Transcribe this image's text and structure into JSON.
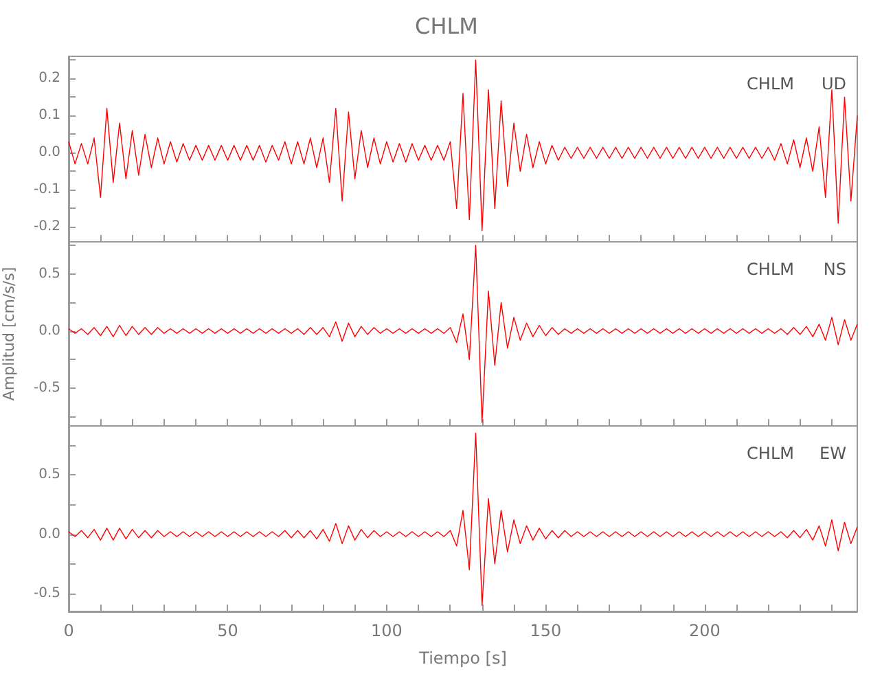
{
  "chart_data": [
    {
      "type": "line",
      "title": "CHLM",
      "annotations": [
        "CHLM",
        "UD"
      ],
      "tick_labels": "y",
      "grid": false,
      "line_style": "solid",
      "x": [
        0,
        2,
        4,
        6,
        8,
        10,
        12,
        14,
        16,
        18,
        20,
        22,
        24,
        26,
        28,
        30,
        32,
        34,
        36,
        38,
        40,
        42,
        44,
        46,
        48,
        50,
        52,
        54,
        56,
        58,
        60,
        62,
        64,
        66,
        68,
        70,
        72,
        74,
        76,
        78,
        80,
        82,
        84,
        86,
        88,
        90,
        92,
        94,
        96,
        98,
        100,
        102,
        104,
        106,
        108,
        110,
        112,
        114,
        116,
        118,
        120,
        122,
        124,
        126,
        128,
        130,
        132,
        134,
        136,
        138,
        140,
        142,
        144,
        146,
        148,
        150,
        152,
        154,
        156,
        158,
        160,
        162,
        164,
        166,
        168,
        170,
        172,
        174,
        176,
        178,
        180,
        182,
        184,
        186,
        188,
        190,
        192,
        194,
        196,
        198,
        200,
        202,
        204,
        206,
        208,
        210,
        212,
        214,
        216,
        218,
        220,
        222,
        224,
        226,
        228,
        230,
        232,
        234,
        236,
        238,
        240,
        242,
        244,
        246,
        248
      ],
      "series": [
        {
          "color": "#ff0000",
          "values": [
            0.03,
            -0.03,
            0.025,
            -0.03,
            0.04,
            -0.12,
            0.12,
            -0.08,
            0.08,
            -0.07,
            0.06,
            -0.06,
            0.05,
            -0.04,
            0.04,
            -0.03,
            0.03,
            -0.025,
            0.025,
            -0.02,
            0.02,
            -0.02,
            0.02,
            -0.02,
            0.02,
            -0.02,
            0.02,
            -0.02,
            0.02,
            -0.02,
            0.02,
            -0.025,
            0.02,
            -0.02,
            0.03,
            -0.03,
            0.03,
            -0.03,
            0.04,
            -0.04,
            0.04,
            -0.08,
            0.12,
            -0.13,
            0.11,
            -0.07,
            0.06,
            -0.04,
            0.04,
            -0.03,
            0.03,
            -0.025,
            0.025,
            -0.025,
            0.025,
            -0.02,
            0.02,
            -0.02,
            0.02,
            -0.02,
            0.03,
            -0.15,
            0.16,
            -0.18,
            0.25,
            -0.21,
            0.17,
            -0.15,
            0.14,
            -0.09,
            0.08,
            -0.05,
            0.05,
            -0.04,
            0.03,
            -0.03,
            0.02,
            -0.02,
            0.015,
            -0.015,
            0.015,
            -0.015,
            0.015,
            -0.015,
            0.015,
            -0.015,
            0.015,
            -0.015,
            0.015,
            -0.015,
            0.015,
            -0.015,
            0.015,
            -0.015,
            0.015,
            -0.015,
            0.015,
            -0.015,
            0.015,
            -0.015,
            0.015,
            -0.015,
            0.015,
            -0.015,
            0.015,
            -0.015,
            0.015,
            -0.015,
            0.015,
            -0.015,
            0.015,
            -0.02,
            0.025,
            -0.03,
            0.035,
            -0.04,
            0.04,
            -0.05,
            0.07,
            -0.12,
            0.17,
            -0.19,
            0.15,
            -0.13,
            0.1
          ]
        }
      ],
      "xlim": [
        0,
        248
      ],
      "xticks": [
        0,
        {
          "value": 10,
          "label": null
        },
        {
          "value": 20,
          "label": null
        },
        {
          "value": 30,
          "label": null
        },
        {
          "value": 40,
          "label": null
        },
        50,
        {
          "value": 60,
          "label": null
        },
        {
          "value": 70,
          "label": null
        },
        {
          "value": 80,
          "label": null
        },
        {
          "value": 90,
          "label": null
        },
        100,
        {
          "value": 110,
          "label": null
        },
        {
          "value": 120,
          "label": null
        },
        {
          "value": 130,
          "label": null
        },
        {
          "value": 140,
          "label": null
        },
        150,
        {
          "value": 160,
          "label": null
        },
        {
          "value": 170,
          "label": null
        },
        {
          "value": 180,
          "label": null
        },
        {
          "value": 190,
          "label": null
        },
        200,
        {
          "value": 210,
          "label": null
        },
        {
          "value": 220,
          "label": null
        },
        {
          "value": 230,
          "label": null
        },
        {
          "value": 240,
          "label": null
        }
      ],
      "ylim": [
        -0.24,
        0.26
      ],
      "yticks": [
        {
          "value": -0.2,
          "label": "-0.2"
        },
        {
          "value": -0.15,
          "label": null
        },
        {
          "value": -0.1,
          "label": "-0.1"
        },
        {
          "value": -0.05,
          "label": null
        },
        {
          "value": 0,
          "label": "0.0"
        },
        {
          "value": 0.05,
          "label": null
        },
        {
          "value": 0.1,
          "label": "0.1"
        },
        {
          "value": 0.15,
          "label": null
        },
        {
          "value": 0.2,
          "label": "0.2"
        },
        {
          "value": 0.25,
          "label": null
        }
      ]
    },
    {
      "type": "line",
      "ylabel": "Amplitud [cm/s/s]",
      "annotations": [
        "CHLM",
        "NS"
      ],
      "tick_labels": "y",
      "grid": false,
      "line_style": "solid",
      "x": [
        0,
        2,
        4,
        6,
        8,
        10,
        12,
        14,
        16,
        18,
        20,
        22,
        24,
        26,
        28,
        30,
        32,
        34,
        36,
        38,
        40,
        42,
        44,
        46,
        48,
        50,
        52,
        54,
        56,
        58,
        60,
        62,
        64,
        66,
        68,
        70,
        72,
        74,
        76,
        78,
        80,
        82,
        84,
        86,
        88,
        90,
        92,
        94,
        96,
        98,
        100,
        102,
        104,
        106,
        108,
        110,
        112,
        114,
        116,
        118,
        120,
        122,
        124,
        126,
        128,
        130,
        132,
        134,
        136,
        138,
        140,
        142,
        144,
        146,
        148,
        150,
        152,
        154,
        156,
        158,
        160,
        162,
        164,
        166,
        168,
        170,
        172,
        174,
        176,
        178,
        180,
        182,
        184,
        186,
        188,
        190,
        192,
        194,
        196,
        198,
        200,
        202,
        204,
        206,
        208,
        210,
        212,
        214,
        216,
        218,
        220,
        222,
        224,
        226,
        228,
        230,
        232,
        234,
        236,
        238,
        240,
        242,
        244,
        246,
        248
      ],
      "series": [
        {
          "color": "#ff0000",
          "values": [
            0.02,
            -0.02,
            0.02,
            -0.03,
            0.03,
            -0.04,
            0.04,
            -0.05,
            0.05,
            -0.04,
            0.04,
            -0.03,
            0.03,
            -0.03,
            0.03,
            -0.02,
            0.02,
            -0.02,
            0.02,
            -0.02,
            0.02,
            -0.02,
            0.02,
            -0.02,
            0.02,
            -0.02,
            0.02,
            -0.02,
            0.02,
            -0.02,
            0.02,
            -0.02,
            0.02,
            -0.02,
            0.02,
            -0.02,
            0.02,
            -0.03,
            0.03,
            -0.03,
            0.03,
            -0.05,
            0.08,
            -0.09,
            0.07,
            -0.05,
            0.04,
            -0.03,
            0.03,
            -0.02,
            0.02,
            -0.02,
            0.02,
            -0.02,
            0.02,
            -0.02,
            0.02,
            -0.02,
            0.02,
            -0.02,
            0.03,
            -0.1,
            0.15,
            -0.25,
            0.75,
            -0.8,
            0.35,
            -0.3,
            0.25,
            -0.15,
            0.12,
            -0.08,
            0.07,
            -0.05,
            0.05,
            -0.04,
            0.03,
            -0.03,
            0.02,
            -0.02,
            0.02,
            -0.02,
            0.02,
            -0.02,
            0.02,
            -0.02,
            0.02,
            -0.02,
            0.02,
            -0.02,
            0.02,
            -0.02,
            0.02,
            -0.02,
            0.02,
            -0.02,
            0.02,
            -0.02,
            0.02,
            -0.02,
            0.02,
            -0.02,
            0.02,
            -0.02,
            0.02,
            -0.02,
            0.02,
            -0.02,
            0.02,
            -0.02,
            0.02,
            -0.02,
            0.02,
            -0.03,
            0.03,
            -0.03,
            0.04,
            -0.05,
            0.06,
            -0.08,
            0.12,
            -0.12,
            0.1,
            -0.08,
            0.06
          ]
        }
      ],
      "xlim": [
        0,
        248
      ],
      "xticks": [
        0,
        {
          "value": 10,
          "label": null
        },
        {
          "value": 20,
          "label": null
        },
        {
          "value": 30,
          "label": null
        },
        {
          "value": 40,
          "label": null
        },
        50,
        {
          "value": 60,
          "label": null
        },
        {
          "value": 70,
          "label": null
        },
        {
          "value": 80,
          "label": null
        },
        {
          "value": 90,
          "label": null
        },
        100,
        {
          "value": 110,
          "label": null
        },
        {
          "value": 120,
          "label": null
        },
        {
          "value": 130,
          "label": null
        },
        {
          "value": 140,
          "label": null
        },
        150,
        {
          "value": 160,
          "label": null
        },
        {
          "value": 170,
          "label": null
        },
        {
          "value": 180,
          "label": null
        },
        {
          "value": 190,
          "label": null
        },
        200,
        {
          "value": 210,
          "label": null
        },
        {
          "value": 220,
          "label": null
        },
        {
          "value": 230,
          "label": null
        },
        {
          "value": 240,
          "label": null
        }
      ],
      "ylim": [
        -0.83,
        0.78
      ],
      "yticks": [
        {
          "value": -0.75,
          "label": null
        },
        {
          "value": -0.5,
          "label": "-0.5"
        },
        {
          "value": -0.25,
          "label": null
        },
        {
          "value": 0,
          "label": "0.0"
        },
        {
          "value": 0.25,
          "label": null
        },
        {
          "value": 0.5,
          "label": "0.5"
        },
        {
          "value": 0.75,
          "label": null
        }
      ]
    },
    {
      "type": "line",
      "xlabel": "Tiempo [s]",
      "annotations": [
        "CHLM",
        "EW"
      ],
      "grid": false,
      "line_style": "solid",
      "x": [
        0,
        2,
        4,
        6,
        8,
        10,
        12,
        14,
        16,
        18,
        20,
        22,
        24,
        26,
        28,
        30,
        32,
        34,
        36,
        38,
        40,
        42,
        44,
        46,
        48,
        50,
        52,
        54,
        56,
        58,
        60,
        62,
        64,
        66,
        68,
        70,
        72,
        74,
        76,
        78,
        80,
        82,
        84,
        86,
        88,
        90,
        92,
        94,
        96,
        98,
        100,
        102,
        104,
        106,
        108,
        110,
        112,
        114,
        116,
        118,
        120,
        122,
        124,
        126,
        128,
        130,
        132,
        134,
        136,
        138,
        140,
        142,
        144,
        146,
        148,
        150,
        152,
        154,
        156,
        158,
        160,
        162,
        164,
        166,
        168,
        170,
        172,
        174,
        176,
        178,
        180,
        182,
        184,
        186,
        188,
        190,
        192,
        194,
        196,
        198,
        200,
        202,
        204,
        206,
        208,
        210,
        212,
        214,
        216,
        218,
        220,
        222,
        224,
        226,
        228,
        230,
        232,
        234,
        236,
        238,
        240,
        242,
        244,
        246,
        248
      ],
      "series": [
        {
          "color": "#ff0000",
          "values": [
            0.02,
            -0.02,
            0.03,
            -0.03,
            0.04,
            -0.05,
            0.05,
            -0.05,
            0.05,
            -0.04,
            0.04,
            -0.03,
            0.03,
            -0.03,
            0.03,
            -0.02,
            0.02,
            -0.02,
            0.02,
            -0.02,
            0.02,
            -0.02,
            0.02,
            -0.02,
            0.02,
            -0.02,
            0.02,
            -0.02,
            0.02,
            -0.02,
            0.02,
            -0.02,
            0.02,
            -0.02,
            0.03,
            -0.03,
            0.03,
            -0.03,
            0.03,
            -0.04,
            0.04,
            -0.06,
            0.09,
            -0.08,
            0.07,
            -0.05,
            0.04,
            -0.03,
            0.03,
            -0.02,
            0.02,
            -0.02,
            0.02,
            -0.02,
            0.02,
            -0.02,
            0.02,
            -0.02,
            0.02,
            -0.02,
            0.03,
            -0.1,
            0.2,
            -0.3,
            0.85,
            -0.6,
            0.3,
            -0.25,
            0.2,
            -0.15,
            0.12,
            -0.08,
            0.07,
            -0.05,
            0.05,
            -0.04,
            0.03,
            -0.03,
            0.03,
            -0.02,
            0.02,
            -0.02,
            0.02,
            -0.02,
            0.02,
            -0.02,
            0.02,
            -0.02,
            0.02,
            -0.02,
            0.02,
            -0.02,
            0.02,
            -0.02,
            0.02,
            -0.02,
            0.02,
            -0.02,
            0.02,
            -0.02,
            0.02,
            -0.02,
            0.02,
            -0.02,
            0.02,
            -0.02,
            0.02,
            -0.02,
            0.02,
            -0.02,
            0.02,
            -0.02,
            0.02,
            -0.03,
            0.03,
            -0.03,
            0.04,
            -0.05,
            0.07,
            -0.1,
            0.12,
            -0.14,
            0.1,
            -0.08,
            0.06
          ]
        }
      ],
      "xlim": [
        0,
        248
      ],
      "xticks": [
        0,
        {
          "value": 10,
          "label": null
        },
        {
          "value": 20,
          "label": null
        },
        {
          "value": 30,
          "label": null
        },
        {
          "value": 40,
          "label": null
        },
        50,
        {
          "value": 60,
          "label": null
        },
        {
          "value": 70,
          "label": null
        },
        {
          "value": 80,
          "label": null
        },
        {
          "value": 90,
          "label": null
        },
        100,
        {
          "value": 110,
          "label": null
        },
        {
          "value": 120,
          "label": null
        },
        {
          "value": 130,
          "label": null
        },
        {
          "value": 140,
          "label": null
        },
        150,
        {
          "value": 160,
          "label": null
        },
        {
          "value": 170,
          "label": null
        },
        {
          "value": 180,
          "label": null
        },
        {
          "value": 190,
          "label": null
        },
        200,
        {
          "value": 210,
          "label": null
        },
        {
          "value": 220,
          "label": null
        },
        {
          "value": 230,
          "label": null
        },
        {
          "value": 240,
          "label": null
        }
      ],
      "ylim": [
        -0.65,
        0.91
      ],
      "yticks": [
        {
          "value": -0.5,
          "label": "-0.5"
        },
        {
          "value": -0.25,
          "label": null
        },
        {
          "value": 0,
          "label": "0.0"
        },
        {
          "value": 0.25,
          "label": null
        },
        {
          "value": 0.5,
          "label": "0.5"
        },
        {
          "value": 0.75,
          "label": null
        }
      ]
    }
  ]
}
